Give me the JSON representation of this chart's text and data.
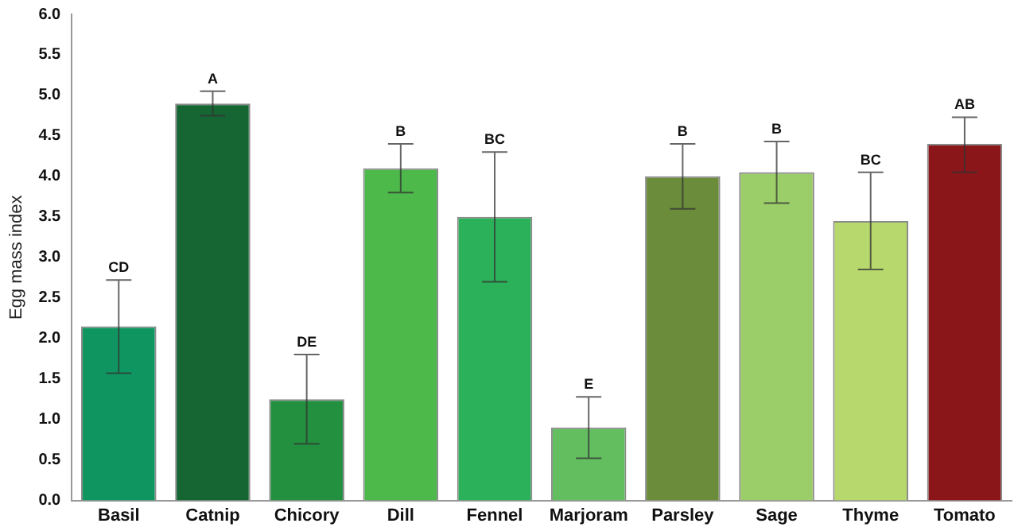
{
  "chart_data": {
    "type": "bar",
    "ylabel": "Egg mass index",
    "categories": [
      "Basil",
      "Catnip",
      "Chicory",
      "Dill",
      "Fennel",
      "Marjoram",
      "Parsley",
      "Sage",
      "Thyme",
      "Tomato"
    ],
    "values": [
      2.15,
      4.9,
      1.25,
      4.1,
      3.5,
      0.9,
      4.0,
      4.05,
      3.45,
      4.4
    ],
    "errors": [
      [
        1.57,
        2.72
      ],
      [
        4.75,
        5.05
      ],
      [
        0.7,
        1.8
      ],
      [
        3.8,
        4.4
      ],
      [
        2.7,
        4.3
      ],
      [
        0.52,
        1.28
      ],
      [
        3.6,
        4.4
      ],
      [
        3.67,
        4.43
      ],
      [
        2.85,
        4.05
      ],
      [
        4.05,
        4.73
      ]
    ],
    "colors": [
      "#0f9660",
      "#166634",
      "#22903f",
      "#4cb94a",
      "#2bb159",
      "#62be5e",
      "#6b8c3a",
      "#9bcd68",
      "#b6d86c",
      "#8b1619"
    ],
    "ylim": [
      0,
      6
    ],
    "yticks": [
      {
        "value": 0,
        "label": "0.0"
      },
      {
        "value": 0.5,
        "label": "0.5"
      },
      {
        "value": 1,
        "label": "1.0"
      },
      {
        "value": 1.5,
        "label": "1.5"
      },
      {
        "value": 2,
        "label": "2.0"
      },
      {
        "value": 2.5,
        "label": "2.5"
      },
      {
        "value": 3,
        "label": "3.0"
      },
      {
        "value": 3.5,
        "label": "3.5"
      },
      {
        "value": 4,
        "label": "4.0"
      },
      {
        "value": 4.5,
        "label": "4.5"
      },
      {
        "value": 5,
        "label": "5.0"
      },
      {
        "value": 5.5,
        "label": "5.5"
      },
      {
        "value": 6,
        "label": "6.0"
      }
    ],
    "grid": false,
    "legend": false,
    "annotations": [
      {
        "text": "CD",
        "x": "Basil",
        "y": 2.72
      },
      {
        "text": "A",
        "x": "Catnip",
        "y": 5.05
      },
      {
        "text": "DE",
        "x": "Chicory",
        "y": 1.8
      },
      {
        "text": "B",
        "x": "Dill",
        "y": 4.4
      },
      {
        "text": "BC",
        "x": "Fennel",
        "y": 4.3
      },
      {
        "text": "E",
        "x": "Marjoram",
        "y": 1.28
      },
      {
        "text": "B",
        "x": "Parsley",
        "y": 4.4
      },
      {
        "text": "B",
        "x": "Sage",
        "y": 4.43
      },
      {
        "text": "BC",
        "x": "Thyme",
        "y": 4.05
      },
      {
        "text": "AB",
        "x": "Tomato",
        "y": 4.73
      }
    ]
  }
}
